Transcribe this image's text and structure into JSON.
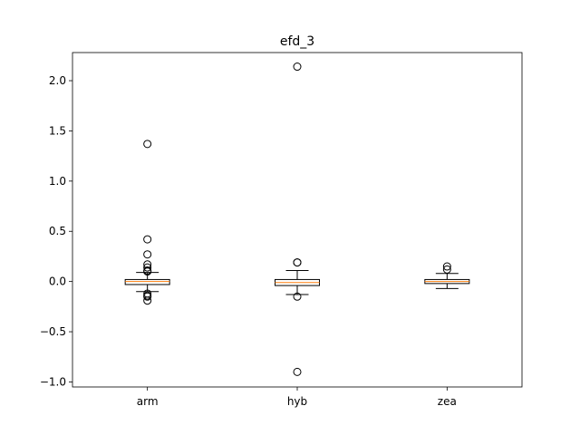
{
  "chart_data": {
    "type": "box",
    "title": "efd_3",
    "xlabel": "",
    "ylabel": "",
    "categories": [
      "arm",
      "hyb",
      "zea"
    ],
    "ylim": [
      -1.05,
      2.28
    ],
    "yticks": [
      -1.0,
      -0.5,
      0.0,
      0.5,
      1.0,
      1.5,
      2.0
    ],
    "ytick_labels": [
      "−1.0",
      "−0.5",
      "0.0",
      "0.5",
      "1.0",
      "1.5",
      "2.0"
    ],
    "grid": false,
    "colors": {
      "box": "#000000",
      "median": "#ff7f0e",
      "flier": "#000000",
      "background": "#ffffff"
    },
    "boxes": [
      {
        "label": "arm",
        "whislo": -0.1,
        "q1": -0.03,
        "median": 0.0,
        "q3": 0.02,
        "whishi": 0.09,
        "fliers": [
          1.37,
          0.42,
          0.27,
          0.17,
          0.14,
          0.11,
          0.1,
          -0.12,
          -0.14,
          -0.15,
          -0.19
        ]
      },
      {
        "label": "hyb",
        "whislo": -0.13,
        "q1": -0.04,
        "median": -0.01,
        "q3": 0.02,
        "whishi": 0.11,
        "fliers": [
          2.14,
          0.19,
          0.19,
          -0.15,
          -0.9
        ]
      },
      {
        "label": "zea",
        "whislo": -0.07,
        "q1": -0.02,
        "median": 0.0,
        "q3": 0.02,
        "whishi": 0.08,
        "fliers": [
          0.15,
          0.12
        ]
      }
    ]
  }
}
